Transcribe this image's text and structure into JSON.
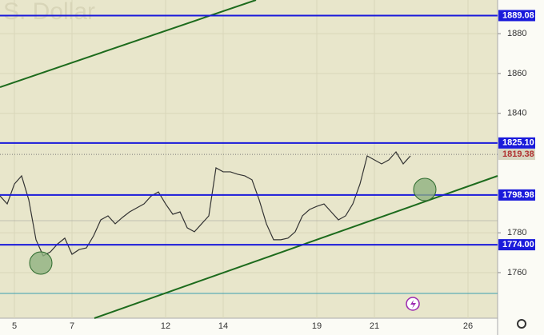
{
  "chart_data": {
    "type": "line",
    "title": "S. Dollar",
    "categories": [
      null,
      null,
      "5",
      null,
      null,
      null,
      null,
      null,
      null,
      null,
      "7",
      null,
      null,
      null,
      null,
      null,
      null,
      null,
      null,
      null,
      null,
      null,
      null,
      "12",
      null,
      null,
      null,
      null,
      null,
      null,
      null,
      "14",
      null,
      null,
      null,
      null,
      null,
      null,
      null,
      null,
      null,
      null,
      null,
      null,
      "19",
      null,
      null,
      null,
      null,
      null,
      null,
      null,
      "21",
      null,
      null,
      null,
      null,
      null,
      null,
      null,
      null,
      null,
      null,
      null,
      null,
      "26",
      null,
      null,
      null
    ],
    "series": [
      {
        "color": "#333333",
        "values": [
          1798.5,
          1794.5,
          1804.5,
          1808.6,
          1796.5,
          1776.5,
          1768.4,
          1770.4,
          1774.4,
          1777.3,
          1769.2,
          1771.6,
          1772.4,
          1778.5,
          1786.5,
          1788.5,
          1784.5,
          1787.7,
          1790.5,
          1792.5,
          1794.5,
          1798.5,
          1800.5,
          1794.5,
          1789.3,
          1790.5,
          1782.5,
          1780.5,
          1784.5,
          1788.5,
          1812.6,
          1810.6,
          1810.6,
          1809.4,
          1808.6,
          1806.6,
          1796.5,
          1784.5,
          1776.5,
          1776.5,
          1777.3,
          1780.5,
          1788.5,
          1791.7,
          1793.3,
          1794.5,
          1790.5,
          1786.5,
          1788.5,
          1794.5,
          1804.5,
          1818.6,
          1816.6,
          1814.6,
          1816.6,
          1820.6,
          1814.6,
          1818.6,
          null,
          null,
          null,
          null,
          null,
          null,
          null,
          null,
          null,
          null,
          null
        ]
      }
    ],
    "ylim": [
      1737.1,
      1896.9
    ],
    "yticks": [
      1760,
      1780,
      1840,
      1860,
      1880
    ],
    "grid": true,
    "levels": [
      {
        "value": 1889.08,
        "color": "#1a1adb"
      },
      {
        "value": 1825.1,
        "label": "1825.10",
        "color": "#1a1adb"
      },
      {
        "value": 1798.98,
        "color": "#1a1adb"
      },
      {
        "value": 1774.0,
        "label": "1774.00",
        "color": "#1a1adb"
      }
    ],
    "last_price": 1819.38
  }
}
